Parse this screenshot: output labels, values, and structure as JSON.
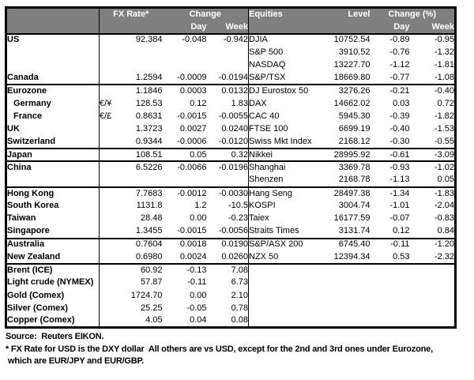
{
  "colors": {
    "header_bg": "#7f7f7f",
    "header_text": "#ffffff",
    "border": "#000000",
    "text": "#000000",
    "background": "#ffffff"
  },
  "table": {
    "header": {
      "fx_rate": "FX Rate*",
      "change": "Change",
      "day": "Day",
      "week": "Week",
      "equities": "Equities",
      "level": "Level",
      "change_pct": "Change (%)",
      "day2": "Day",
      "week2": "Week"
    },
    "rows": [
      {
        "label": "US",
        "fx": "92.384",
        "fx_day": "-0.048",
        "fx_week": "-0.942",
        "eq": "DJIA",
        "level": "10752.54",
        "eq_day": "-0.89",
        "eq_week": "-0.95"
      },
      {
        "eq": "S&P 500",
        "level": "3910.52",
        "eq_day": "-0.76",
        "eq_week": "-1.32"
      },
      {
        "eq": "NASDAQ",
        "level": "13227.70",
        "eq_day": "-1.12",
        "eq_week": "-1.81"
      },
      {
        "label": "Canada",
        "fx": "1.2594",
        "fx_day": "-0.0009",
        "fx_week": "-0.0194",
        "eq": "S&P/TSX",
        "level": "18669.80",
        "eq_day": "-0.77",
        "eq_week": "-1.08"
      },
      {
        "label": "Eurozone",
        "sep": true,
        "fx": "1.1846",
        "fx_day": "0.0003",
        "fx_week": "0.0132",
        "eq": "DJ Eurostox 50",
        "level": "3276.26",
        "eq_day": "-0.21",
        "eq_week": "-0.40"
      },
      {
        "label": "Germany",
        "indent": true,
        "pair": "€/¥",
        "fx": "128.53",
        "fx_day": "0.12",
        "fx_week": "1.83",
        "eq": "DAX",
        "level": "14662.02",
        "eq_day": "0.03",
        "eq_week": "0.72"
      },
      {
        "label": "France",
        "indent": true,
        "pair": "€/£",
        "fx": "0.8631",
        "fx_day": "-0.0015",
        "fx_week": "-0.0055",
        "eq": "CAC 40",
        "level": "5945.30",
        "eq_day": "-0.39",
        "eq_week": "-1.82"
      },
      {
        "label": "UK",
        "fx": "1.3723",
        "fx_day": "0.0027",
        "fx_week": "0.0240",
        "eq": "FTSE 100",
        "level": "6699.19",
        "eq_day": "-0.40",
        "eq_week": "-1.53"
      },
      {
        "label": "Switzerland",
        "fx": "0.9344",
        "fx_day": "-0.0006",
        "fx_week": "-0.0120",
        "eq": "Swiss Mkt Index",
        "level": "2168.12",
        "eq_day": "-0.30",
        "eq_week": "-0.55"
      },
      {
        "label": "Japan",
        "sep": true,
        "fx": "108.51",
        "fx_day": "0.05",
        "fx_week": "0.32",
        "eq": "Nikkei",
        "level": "28995.92",
        "eq_day": "-0.61",
        "eq_week": "-3.09"
      },
      {
        "label": "China",
        "sep": true,
        "fx": "6.5226",
        "fx_day": "-0.0066",
        "fx_week": "-0.0196",
        "eq": "Shanghai",
        "level": "3369.78",
        "eq_day": "-0.93",
        "eq_week": "-1.02"
      },
      {
        "eq": "Shenzen",
        "level": "2168.78",
        "eq_day": "-1.13",
        "eq_week": "0.05"
      },
      {
        "label": "Hong Kong",
        "sep": true,
        "fx": "7.7683",
        "fx_day": "-0.0012",
        "fx_week": "-0.0030",
        "eq": "Hang Seng",
        "level": "28497.38",
        "eq_day": "-1.34",
        "eq_week": "-1.83"
      },
      {
        "label": "South Korea",
        "fx": "1131.8",
        "fx_day": "1.2",
        "fx_week": "-10.5",
        "eq": "KOSPI",
        "level": "3004.74",
        "eq_day": "-1.01",
        "eq_week": "-2.04"
      },
      {
        "label": "Taiwan",
        "fx": "28.48",
        "fx_day": "0.00",
        "fx_week": "-0.23",
        "eq": "Taiex",
        "level": "16177.59",
        "eq_day": "-0.07",
        "eq_week": "-0.83"
      },
      {
        "label": "Singapore",
        "fx": "1.3455",
        "fx_day": "-0.0015",
        "fx_week": "-0.0056",
        "eq": "Straits Times",
        "level": "3131.74",
        "eq_day": "0.12",
        "eq_week": "0.84"
      },
      {
        "label": "Australia",
        "sep": true,
        "fx": "0.7604",
        "fx_day": "0.0018",
        "fx_week": "0.0190",
        "eq": "S&P/ASX  200",
        "level": "6745.40",
        "eq_day": "-0.11",
        "eq_week": "-1.20"
      },
      {
        "label": "New Zealand",
        "fx": "0.6980",
        "fx_day": "0.0024",
        "fx_week": "0.0260",
        "eq": "NZX 50",
        "level": "12394.34",
        "eq_day": "0.53",
        "eq_week": "-2.32"
      },
      {
        "label": "Brent (ICE)",
        "sep": true,
        "fx": "60.92",
        "fx_day": "-0.13",
        "fx_week": "7.08"
      },
      {
        "label": "Light crude (NYMEX)",
        "fx": "57.87",
        "fx_day": "-0.11",
        "fx_week": "6.73"
      },
      {
        "label": "Gold (Comex)",
        "fx": "1724.70",
        "fx_day": "0.00",
        "fx_week": "2.10"
      },
      {
        "label": "Silver (Comex)",
        "fx": "25.25",
        "fx_day": "-0.05",
        "fx_week": "0.78"
      },
      {
        "label": "Copper (Comex)",
        "fx": "4.05",
        "fx_day": "0.04",
        "fx_week": "0.08"
      }
    ]
  },
  "footer": {
    "source": "Source:  Reuters EIKON.",
    "footnote_line1": "* FX Rate for USD is the DXY dollar  All others are vs USD, except for the 2nd and 3rd ones under Eurozone,",
    "footnote_line2": "which are EUR/JPY and EUR/GBP."
  }
}
